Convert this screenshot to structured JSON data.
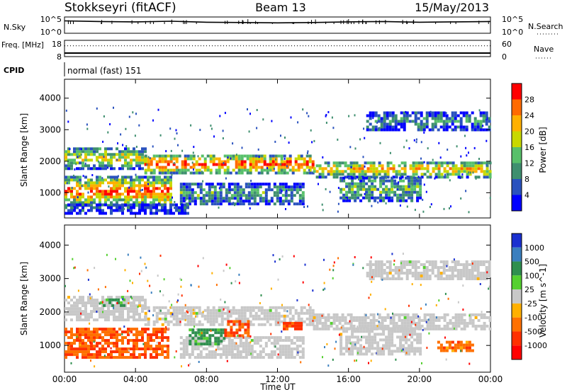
{
  "header": {
    "station": "Stokkseyri (fitACF)",
    "beam": "Beam 13",
    "date": "15/May/2013"
  },
  "colors": {
    "power_scale": [
      "#0000ff",
      "#2a52be",
      "#3f8f6f",
      "#58c06a",
      "#c8d800",
      "#ffb000",
      "#ff6a00",
      "#ff0000"
    ],
    "velocity_scale": [
      "#1a30d0",
      "#3a7fbf",
      "#2f8f4f",
      "#55d030",
      "#c8c8c8",
      "#ffb000",
      "#ff7000",
      "#ff3000",
      "#ff0000"
    ],
    "ground_scatter": "#c8c8c8"
  },
  "chart_data": [
    {
      "type": "line",
      "id": "nsky-nsearch",
      "left_label": "N.Sky",
      "left_ticks": [
        "10^5",
        "10^0"
      ],
      "right_ticks": [
        "10^5",
        "10^0"
      ],
      "right_label": "N.Search",
      "series": [
        {
          "name": "N.Sky",
          "style": "solid",
          "x": [
            0,
            2,
            4,
            6,
            8,
            10,
            12,
            14,
            16,
            18,
            20,
            22,
            24
          ],
          "y": [
            3.8,
            3.6,
            3.5,
            3.7,
            3.4,
            3.3,
            3.2,
            3.3,
            3.5,
            3.6,
            3.4,
            3.5,
            3.6
          ]
        }
      ]
    },
    {
      "type": "line",
      "id": "freq-nave",
      "left_label": "Freq. [MHz]",
      "left_ticks": [
        "18",
        "8"
      ],
      "right_ticks": [
        "60",
        "0"
      ],
      "right_label": "Nave",
      "series": [
        {
          "name": "Freq.",
          "style": "solid",
          "x": [
            0,
            24
          ],
          "y": [
            10.2,
            10.2
          ]
        },
        {
          "name": "Nave",
          "style": "dotted",
          "x": [
            0,
            24
          ],
          "y": [
            40,
            40
          ]
        }
      ]
    },
    {
      "type": "table",
      "id": "cpid",
      "left_label": "CPID",
      "text": "normal (fast) 151"
    },
    {
      "type": "heatmap",
      "id": "power",
      "ylabel": "Slant Range [km]",
      "xlim": [
        0,
        24
      ],
      "ylim": [
        200,
        4600
      ],
      "yticks": [
        1000,
        2000,
        3000,
        4000
      ],
      "colorbar_label": "Power [dB]",
      "colorbar_ticks": [
        "28",
        "24",
        "20",
        "16",
        "12",
        "8",
        "4"
      ],
      "bands": [
        {
          "x0": 0.0,
          "x1": 4.5,
          "y0": 1720,
          "y1": 2400,
          "peak": 0.55
        },
        {
          "x0": 4.5,
          "x1": 14.0,
          "y0": 1580,
          "y1": 2150,
          "peak": 0.85
        },
        {
          "x0": 14.0,
          "x1": 24.0,
          "y0": 1450,
          "y1": 1950,
          "peak": 0.65
        },
        {
          "x0": 0.0,
          "x1": 6.0,
          "y0": 550,
          "y1": 1450,
          "peak": 0.8
        },
        {
          "x0": 6.5,
          "x1": 13.5,
          "y0": 600,
          "y1": 1250,
          "peak": 0.35
        },
        {
          "x0": 15.5,
          "x1": 20.0,
          "y0": 700,
          "y1": 1500,
          "peak": 0.4
        },
        {
          "x0": 17.0,
          "x1": 24.0,
          "y0": 2950,
          "y1": 3500,
          "peak": 0.3
        },
        {
          "x0": 0.0,
          "x1": 7.0,
          "y0": 300,
          "y1": 650,
          "peak": 0.15
        }
      ]
    },
    {
      "type": "heatmap",
      "id": "velocity",
      "xlabel": "Time UT",
      "ylabel": "Slant Range [km]",
      "xlim": [
        0,
        24
      ],
      "ylim": [
        200,
        4600
      ],
      "xticks": [
        "00:00",
        "04:00",
        "08:00",
        "12:00",
        "16:00",
        "20:00",
        "00:00"
      ],
      "yticks": [
        1000,
        2000,
        3000,
        4000
      ],
      "colorbar_label": "Velocity [m s^-1]",
      "colorbar_ticks": [
        "1000",
        "500",
        "100",
        "25",
        "-25",
        "-100",
        "-500",
        "-1000"
      ],
      "bands": [
        {
          "x0": 0.0,
          "x1": 4.5,
          "y0": 1720,
          "y1": 2400,
          "v": 0.0
        },
        {
          "x0": 4.5,
          "x1": 14.0,
          "y0": 1580,
          "y1": 2150,
          "v": 0.0
        },
        {
          "x0": 14.0,
          "x1": 24.0,
          "y0": 1450,
          "y1": 1950,
          "v": 0.0
        },
        {
          "x0": 0.0,
          "x1": 5.8,
          "y0": 600,
          "y1": 1500,
          "v": -0.6
        },
        {
          "x0": 6.5,
          "x1": 13.5,
          "y0": 600,
          "y1": 1250,
          "v": 0.0
        },
        {
          "x0": 7.0,
          "x1": 9.0,
          "y0": 1000,
          "y1": 1500,
          "v": 0.45
        },
        {
          "x0": 9.0,
          "x1": 10.3,
          "y0": 1250,
          "y1": 1700,
          "v": -0.6
        },
        {
          "x0": 12.3,
          "x1": 13.4,
          "y0": 1450,
          "y1": 1700,
          "v": -0.7
        },
        {
          "x0": 15.5,
          "x1": 20.0,
          "y0": 700,
          "y1": 1500,
          "v": 0.0
        },
        {
          "x0": 17.0,
          "x1": 24.0,
          "y0": 2950,
          "y1": 3500,
          "v": 0.0
        },
        {
          "x0": 21.0,
          "x1": 23.0,
          "y0": 800,
          "y1": 1100,
          "v": -0.5
        },
        {
          "x0": 2.0,
          "x1": 3.3,
          "y0": 2150,
          "y1": 2400,
          "v": 0.4
        }
      ]
    }
  ]
}
